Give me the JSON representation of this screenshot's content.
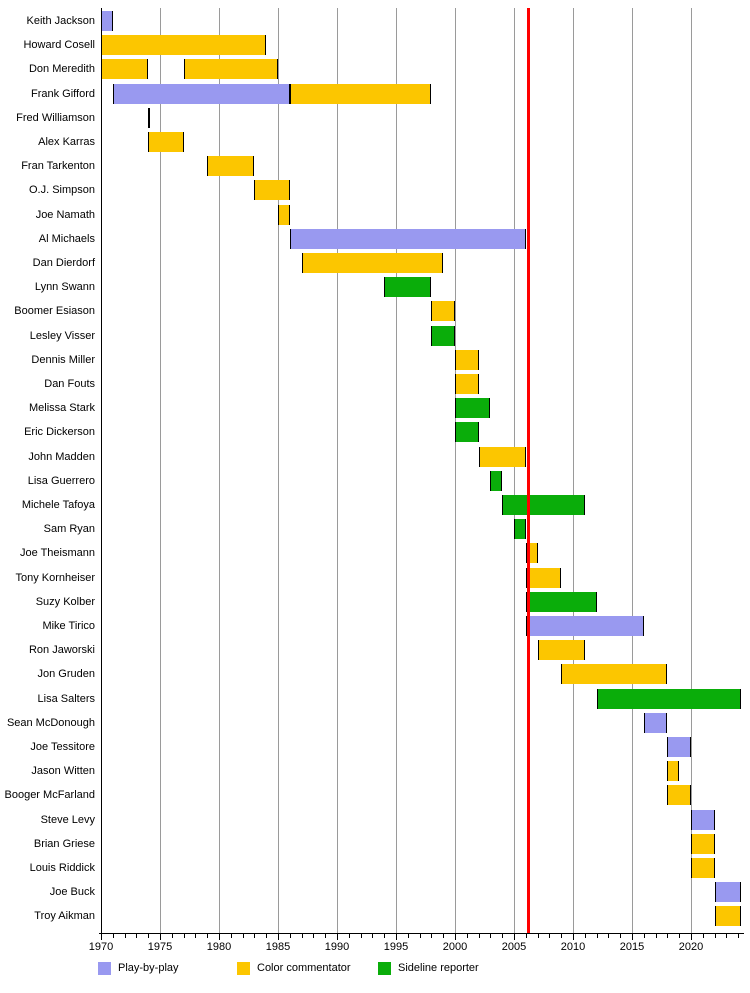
{
  "chart_data": {
    "type": "bar",
    "variant": "gantt-timeline",
    "description": "Timeline of Monday Night Football broadcast personalities by role",
    "grid": true,
    "legend_position": "bottom",
    "axis": {
      "min": 1970,
      "max": 2024.5,
      "major_ticks": [
        1970,
        1975,
        1980,
        1985,
        1990,
        1995,
        2000,
        2005,
        2010,
        2015,
        2020
      ],
      "minor_tick_step": 1
    },
    "marker_line": {
      "year": 2006.2,
      "color": "#ff0000"
    },
    "colors": {
      "gridline": "#9a9a9a",
      "axis": "#000000",
      "background": "#ffffff"
    },
    "legend": [
      {
        "id": "play-by-play",
        "label": "Play-by-play",
        "color": "#9999f0"
      },
      {
        "id": "color-commentator",
        "label": "Color commentator",
        "color": "#fcc600"
      },
      {
        "id": "sideline-reporter",
        "label": "Sideline reporter",
        "color": "#0aad0a"
      }
    ],
    "rows": [
      {
        "name": "Keith Jackson",
        "bars": [
          {
            "role": "play-by-play",
            "start": 1970,
            "end": 1971
          }
        ]
      },
      {
        "name": "Howard Cosell",
        "bars": [
          {
            "role": "color-commentator",
            "start": 1970,
            "end": 1984
          }
        ]
      },
      {
        "name": "Don Meredith",
        "bars": [
          {
            "role": "color-commentator",
            "start": 1970,
            "end": 1974
          },
          {
            "role": "color-commentator",
            "start": 1977,
            "end": 1985
          }
        ]
      },
      {
        "name": "Frank Gifford",
        "bars": [
          {
            "role": "play-by-play",
            "start": 1971,
            "end": 1986
          },
          {
            "role": "color-commentator",
            "start": 1986,
            "end": 1998
          }
        ]
      },
      {
        "name": "Fred Williamson",
        "bars": [
          {
            "role": "color-commentator",
            "start": 1974,
            "end": 1974.1
          }
        ]
      },
      {
        "name": "Alex Karras",
        "bars": [
          {
            "role": "color-commentator",
            "start": 1974,
            "end": 1977
          }
        ]
      },
      {
        "name": "Fran Tarkenton",
        "bars": [
          {
            "role": "color-commentator",
            "start": 1979,
            "end": 1983
          }
        ]
      },
      {
        "name": "O.J. Simpson",
        "bars": [
          {
            "role": "color-commentator",
            "start": 1983,
            "end": 1986
          }
        ]
      },
      {
        "name": "Joe Namath",
        "bars": [
          {
            "role": "color-commentator",
            "start": 1985,
            "end": 1986
          }
        ]
      },
      {
        "name": "Al Michaels",
        "bars": [
          {
            "role": "play-by-play",
            "start": 1986,
            "end": 2006
          }
        ]
      },
      {
        "name": "Dan Dierdorf",
        "bars": [
          {
            "role": "color-commentator",
            "start": 1987,
            "end": 1999
          }
        ]
      },
      {
        "name": "Lynn Swann",
        "bars": [
          {
            "role": "sideline-reporter",
            "start": 1994,
            "end": 1998
          }
        ]
      },
      {
        "name": "Boomer Esiason",
        "bars": [
          {
            "role": "color-commentator",
            "start": 1998,
            "end": 2000
          }
        ]
      },
      {
        "name": "Lesley Visser",
        "bars": [
          {
            "role": "sideline-reporter",
            "start": 1998,
            "end": 2000
          }
        ]
      },
      {
        "name": "Dennis Miller",
        "bars": [
          {
            "role": "color-commentator",
            "start": 2000,
            "end": 2002
          }
        ]
      },
      {
        "name": "Dan Fouts",
        "bars": [
          {
            "role": "color-commentator",
            "start": 2000,
            "end": 2002
          }
        ]
      },
      {
        "name": "Melissa Stark",
        "bars": [
          {
            "role": "sideline-reporter",
            "start": 2000,
            "end": 2003
          }
        ]
      },
      {
        "name": "Eric Dickerson",
        "bars": [
          {
            "role": "sideline-reporter",
            "start": 2000,
            "end": 2002
          }
        ]
      },
      {
        "name": "John Madden",
        "bars": [
          {
            "role": "color-commentator",
            "start": 2002,
            "end": 2006
          }
        ]
      },
      {
        "name": "Lisa Guerrero",
        "bars": [
          {
            "role": "sideline-reporter",
            "start": 2003,
            "end": 2004
          }
        ]
      },
      {
        "name": "Michele Tafoya",
        "bars": [
          {
            "role": "sideline-reporter",
            "start": 2004,
            "end": 2011
          }
        ]
      },
      {
        "name": "Sam Ryan",
        "bars": [
          {
            "role": "sideline-reporter",
            "start": 2005,
            "end": 2006
          }
        ]
      },
      {
        "name": "Joe Theismann",
        "bars": [
          {
            "role": "color-commentator",
            "start": 2006,
            "end": 2007
          }
        ]
      },
      {
        "name": "Tony Kornheiser",
        "bars": [
          {
            "role": "color-commentator",
            "start": 2006,
            "end": 2009
          }
        ]
      },
      {
        "name": "Suzy Kolber",
        "bars": [
          {
            "role": "sideline-reporter",
            "start": 2006,
            "end": 2012
          }
        ]
      },
      {
        "name": "Mike Tirico",
        "bars": [
          {
            "role": "play-by-play",
            "start": 2006,
            "end": 2016
          }
        ]
      },
      {
        "name": "Ron Jaworski",
        "bars": [
          {
            "role": "color-commentator",
            "start": 2007,
            "end": 2011
          }
        ]
      },
      {
        "name": "Jon Gruden",
        "bars": [
          {
            "role": "color-commentator",
            "start": 2009,
            "end": 2018
          }
        ]
      },
      {
        "name": "Lisa Salters",
        "bars": [
          {
            "role": "sideline-reporter",
            "start": 2012,
            "end": 2024.2
          }
        ]
      },
      {
        "name": "Sean McDonough",
        "bars": [
          {
            "role": "play-by-play",
            "start": 2016,
            "end": 2018
          }
        ]
      },
      {
        "name": "Joe Tessitore",
        "bars": [
          {
            "role": "play-by-play",
            "start": 2018,
            "end": 2020
          }
        ]
      },
      {
        "name": "Jason Witten",
        "bars": [
          {
            "role": "color-commentator",
            "start": 2018,
            "end": 2019
          }
        ]
      },
      {
        "name": "Booger McFarland",
        "bars": [
          {
            "role": "color-commentator",
            "start": 2018,
            "end": 2020
          }
        ]
      },
      {
        "name": "Steve Levy",
        "bars": [
          {
            "role": "play-by-play",
            "start": 2020,
            "end": 2022
          }
        ]
      },
      {
        "name": "Brian Griese",
        "bars": [
          {
            "role": "color-commentator",
            "start": 2020,
            "end": 2022
          }
        ]
      },
      {
        "name": "Louis Riddick",
        "bars": [
          {
            "role": "color-commentator",
            "start": 2020,
            "end": 2022
          }
        ]
      },
      {
        "name": "Joe Buck",
        "bars": [
          {
            "role": "play-by-play",
            "start": 2022,
            "end": 2024.2
          }
        ]
      },
      {
        "name": "Troy Aikman",
        "bars": [
          {
            "role": "color-commentator",
            "start": 2022,
            "end": 2024.2
          }
        ]
      }
    ]
  }
}
